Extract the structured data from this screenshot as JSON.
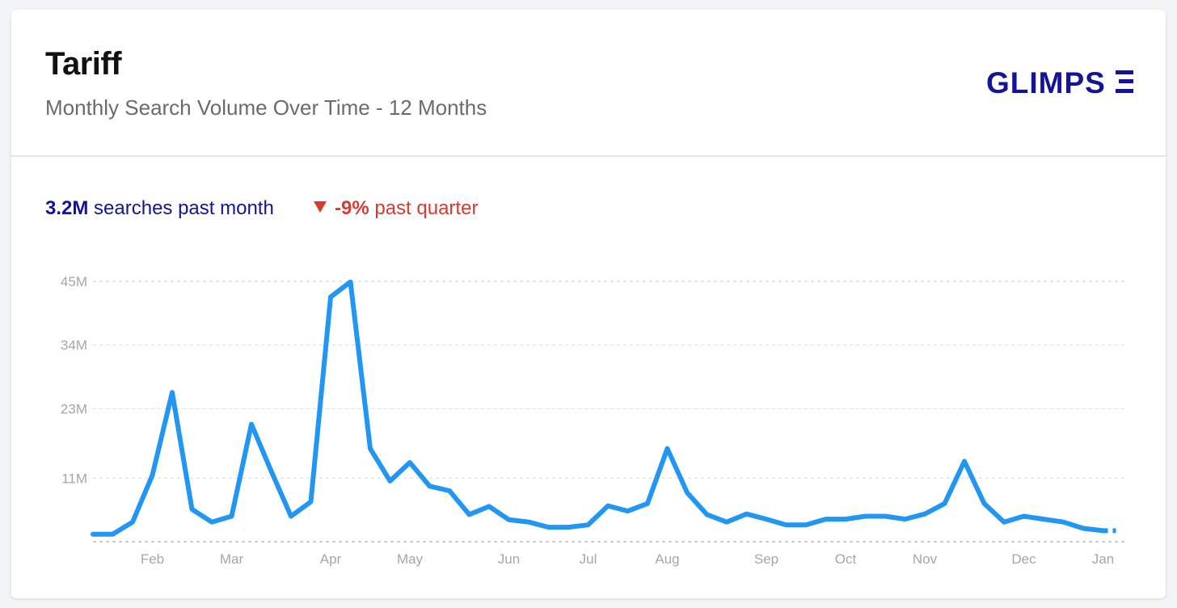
{
  "header": {
    "title": "Tariff",
    "subtitle": "Monthly Search Volume Over Time - 12 Months",
    "logo_text": "GLIMPSE"
  },
  "stats": {
    "month_value": "3.2M",
    "month_label": "searches past month",
    "quarter_value": "-9%",
    "quarter_label": "past quarter"
  },
  "colors": {
    "line": "#2196f3",
    "brand": "#14149a",
    "negative": "#d93a2e",
    "grid": "#dddddd"
  },
  "chart_data": {
    "type": "line",
    "title": "",
    "xlabel": "",
    "ylabel": "",
    "ylim": [
      0,
      45
    ],
    "y_unit": "M",
    "yticks": [
      {
        "value": 11,
        "label": "11M"
      },
      {
        "value": 23,
        "label": "23M"
      },
      {
        "value": 34,
        "label": "34M"
      },
      {
        "value": 45,
        "label": "45M"
      }
    ],
    "xticks": [
      {
        "week": 3,
        "label": "Feb"
      },
      {
        "week": 7,
        "label": "Mar"
      },
      {
        "week": 12,
        "label": "Apr"
      },
      {
        "week": 16,
        "label": "May"
      },
      {
        "week": 21,
        "label": "Jun"
      },
      {
        "week": 25,
        "label": "Jul"
      },
      {
        "week": 29,
        "label": "Aug"
      },
      {
        "week": 34,
        "label": "Sep"
      },
      {
        "week": 38,
        "label": "Oct"
      },
      {
        "week": 42,
        "label": "Nov"
      },
      {
        "week": 47,
        "label": "Dec"
      },
      {
        "week": 51,
        "label": "Jan"
      }
    ],
    "grid": true,
    "series": [
      {
        "values": [
          1.3,
          1.3,
          3.4,
          11.5,
          25.8,
          5.6,
          3.4,
          4.4,
          20.3,
          12.2,
          4.4,
          6.9,
          42.3,
          44.9,
          16.1,
          10.5,
          13.7,
          9.6,
          8.8,
          4.7,
          6.1,
          3.8,
          3.4,
          2.5,
          2.5,
          2.9,
          6.2,
          5.3,
          6.6,
          16.1,
          8.5,
          4.7,
          3.4,
          4.8,
          3.9,
          2.9,
          2.9,
          3.9,
          3.9,
          4.4,
          4.4,
          3.9,
          4.8,
          6.6,
          13.9,
          6.6,
          3.4,
          4.4,
          3.9,
          3.4,
          2.3,
          1.9
        ]
      }
    ],
    "partial_last_point": {
      "value": 1.9
    }
  }
}
